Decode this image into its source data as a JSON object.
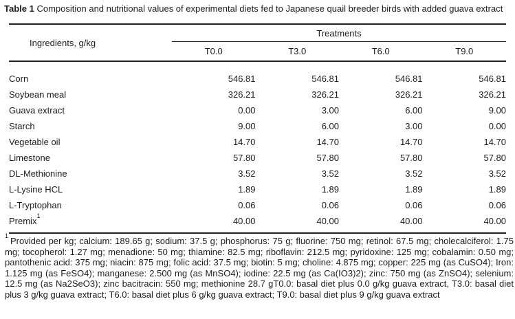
{
  "title": {
    "label": "Table 1",
    "text": "Composition and nutritional values of experimental diets fed to Japanese quail breeder birds with added guava extract"
  },
  "table": {
    "ingredients_header": "Ingredients, g/kg",
    "treatments_header": "Treatments",
    "columns": [
      "T0.0",
      "T3.0",
      "T6.0",
      "T9.0"
    ],
    "rows": [
      {
        "name": "Corn",
        "values": [
          "546.81",
          "546.81",
          "546.81",
          "546.81"
        ]
      },
      {
        "name": "Soybean meal",
        "values": [
          "326.21",
          "326.21",
          "326.21",
          "326.21"
        ]
      },
      {
        "name": "Guava extract",
        "values": [
          "0.00",
          "3.00",
          "6.00",
          "9.00"
        ]
      },
      {
        "name": "Starch",
        "values": [
          "9.00",
          "6.00",
          "3.00",
          "0.00"
        ]
      },
      {
        "name": "Vegetable oil",
        "values": [
          "14.70",
          "14.70",
          "14.70",
          "14.70"
        ]
      },
      {
        "name": "Limestone",
        "values": [
          "57.80",
          "57.80",
          "57.80",
          "57.80"
        ]
      },
      {
        "name": "DL-Methionine",
        "values": [
          "3.52",
          "3.52",
          "3.52",
          "3.52"
        ]
      },
      {
        "name": "L-Lysine HCL",
        "values": [
          "1.89",
          "1.89",
          "1.89",
          "1.89"
        ]
      },
      {
        "name": "L-Tryptophan",
        "values": [
          "0.06",
          "0.06",
          "0.06",
          "0.06"
        ]
      },
      {
        "name": "Premix",
        "sup": "1",
        "values": [
          "40.00",
          "40.00",
          "40.00",
          "40.00"
        ]
      }
    ]
  },
  "footnote": {
    "marker": "1",
    "text": "Provided per kg; calcium: 189.65 g; sodium: 37.5 g; phosphorus: 75 g; fluorine: 750 mg; retinol: 67.5 mg; cholecalciferol: 1.75 mg; tocopherol: 1.27 mg; menadione: 50 mg; thiamine: 82.5 mg; riboflavin: 212.5 mg; pyridoxine: 125 mg; cobalamin: 0.50 mg; pantothenic acid: 375 mg; niacin: 875 mg; folic acid: 37.5 mg; biotin: 5 mg; choline: 4.875 mg; copper: 225 mg (as CuSO4); Iron: 1.125 mg (as FeSO4); manganese: 2.500 mg (as MnSO4); iodine: 22.5 mg (as Ca(IO3)2); zinc: 750 mg (as ZnSO4); selenium: 12.5 mg (as Na2SeO3); zinc bacitracin: 550 mg; methionine 28.7 gT0.0: basal diet plus 0.0 g/kg guava extract, T3.0: basal diet plus 3 g/kg guava extract; T6.0: basal diet plus 6 g/kg guava extract; T9.0: basal diet plus 9 g/kg guava extract"
  }
}
